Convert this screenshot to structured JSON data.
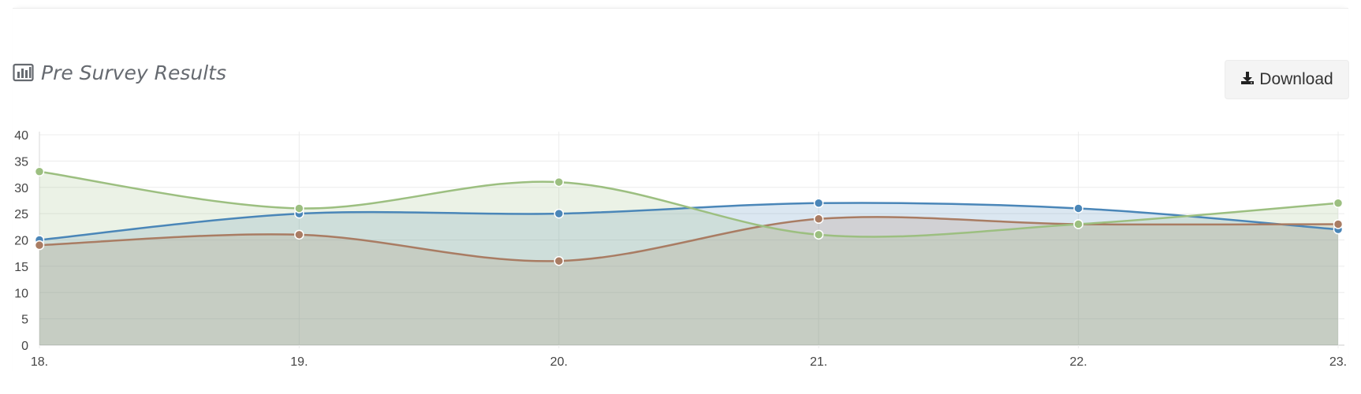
{
  "header": {
    "title": "Pre Survey Results",
    "title_icon": "bar-chart-icon"
  },
  "toolbar": {
    "download_label": "Download",
    "download_icon": "download-icon"
  },
  "chart_data": {
    "type": "area",
    "title": "Pre Survey Results",
    "xlabel": "",
    "ylabel": "",
    "categories": [
      "18.",
      "19.",
      "20.",
      "21.",
      "22.",
      "23."
    ],
    "ylim": [
      0,
      40
    ],
    "yticks": [
      0,
      5,
      10,
      15,
      20,
      25,
      30,
      35,
      40
    ],
    "grid": true,
    "legend": "none",
    "series": [
      {
        "color": "#4a86b8",
        "values": [
          20,
          25,
          25,
          27,
          26,
          22
        ]
      },
      {
        "color": "#a97c63",
        "values": [
          19,
          21,
          16,
          24,
          23,
          23
        ]
      },
      {
        "color": "#9cbf80",
        "values": [
          33,
          26,
          31,
          21,
          23,
          27
        ]
      }
    ]
  }
}
